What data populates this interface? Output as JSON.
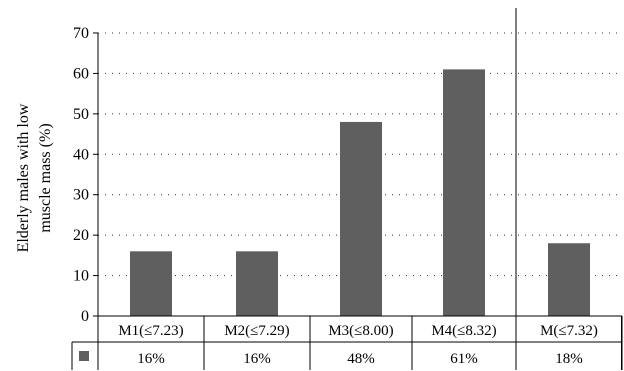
{
  "chart_data": {
    "type": "bar",
    "title": "",
    "ylabel_lines": [
      "Elderly males with low",
      "muscle mass (%)"
    ],
    "xlabel": "",
    "ylim": [
      0,
      70
    ],
    "yticks": [
      0,
      10,
      20,
      30,
      40,
      50,
      60,
      70
    ],
    "grid": "dotted horizontal",
    "categories": [
      "M1(≤7.23)",
      "M2(≤7.29)",
      "M3(≤8.00)",
      "M4(≤8.32)",
      "M(≤7.32)"
    ],
    "values": [
      16,
      16,
      48,
      61,
      18
    ],
    "data_labels": [
      "16%",
      "16%",
      "48%",
      "61%",
      "18%"
    ],
    "bar_color": "#5f5f5f",
    "separator_after_category_index": 3,
    "legend_placement": "data-table row marker"
  }
}
